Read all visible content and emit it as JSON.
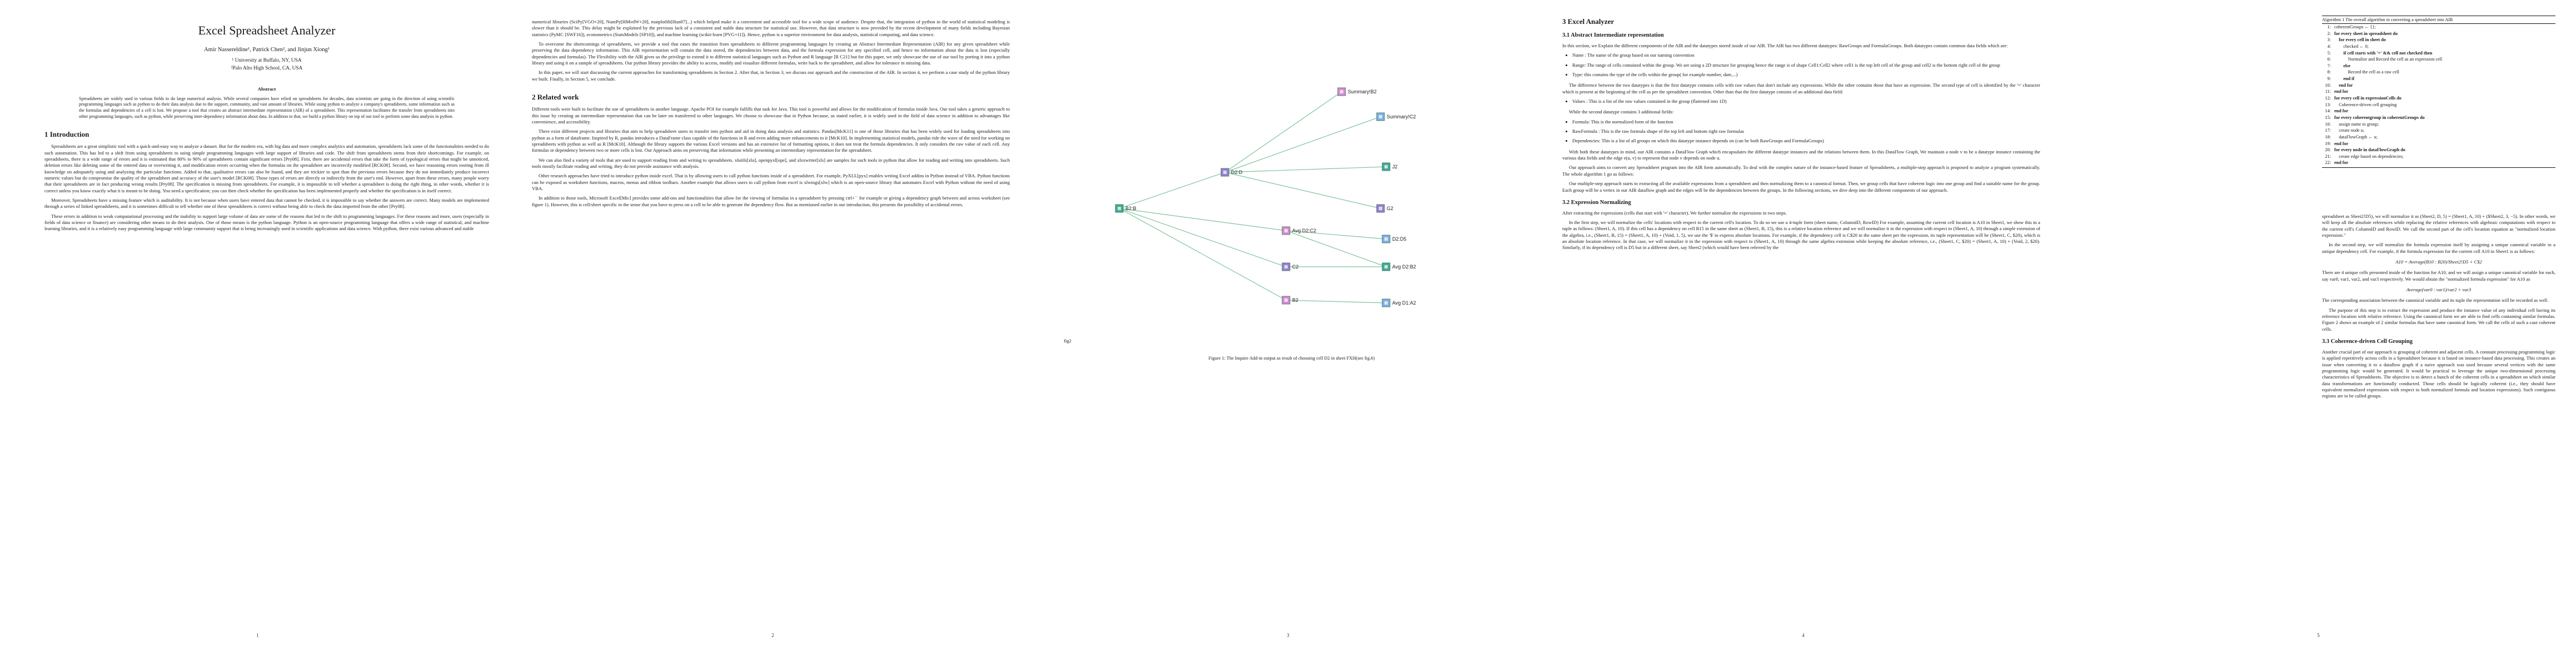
{
  "arxiv_id": "arXiv:2211.06333v1  [cs.SE]  1 Nov 2022",
  "page1": {
    "title": "Excel Spreadsheet Analyzer",
    "authors": "Amir Nassereldine¹, Patrick Chen², and Jinjun Xiong¹",
    "affil1": "¹ University at Buffalo, NY, USA",
    "affil2": "²Palo Alto High School, CA, USA",
    "abstract_title": "Abstract",
    "abstract": "Spreadsheets are widely used in various fields to do large numerical analysis. While several companies have relied on spreadsheets for decades, data scientists are going in the direction of using scientific programming languages such as python to do their data analysis due to the support, community, and vast amount of libraries. While using python to analyze a company's spreadsheets, some information such as the formulas and dependencies of a cell is lost. We propose a tool that creates an abstract intermediate representation (AIR) of a spreadsheet. This representation facilitates the transfer from spreadsheets into other programming languages, such as python, while preserving inter-dependency information about data. In addition to that, we build a python library on top of our tool to perform some data analysis in python.",
    "section": "1   Introduction",
    "para1": "Spreadsheets are a great simplistic tool with a quick-and-easy way to analyze a dataset. But for the modern era, with big data and more complex analytics and automation, spreadsheets lack some of the functionalities needed to do such automation. This has led to a shift from using spreadsheets to using simple programming languages with large support of libraries and code. The shift from spreadsheets stems from their shortcomings. For example, on spreadsheets, there is a wide range of errors and it is estimated that 80% to 90% of spreadsheets contain significant errors [Pry08]. First, there are accidental errors that take the form of typological errors that might be unnoticed, deletion errors like deleting some of the entered data or overwriting it, and modification errors occurring when the formulas on the spreadsheet are incorrectly modified [RCK08]. Second, we have reasoning errors rooting from ill knowledge on adequately using and analyzing the particular functions. Added to that, qualitative errors can also be found, and they are trickier to spot than the previous errors because they do not immediately produce incorrect numeric values but do compromise the quality of the spreadsheet and accuracy of the user's model [RCK08]. Those types of errors are directly or indirectly from the user's end. However, apart from these errors, many people worry that their spreadsheets are in fact producing wrong results [Pry08]. The specification is missing from spreadsheets. For example, it is impossible to tell whether a spreadsheet is doing the right thing, in other words, whether it is correct unless you know exactly what it is meant to be doing. You need a specification; you can then check whether the specification has been implemented properly and whether the specification is in itself correct.",
    "para2": "Moreover, Spreadsheets have a missing feature which is auditability. It is not because when users have entered data that cannot be checked, it is impossible to say whether the answers are correct. Many models are implemented through a series of linked spreadsheets, and it is sometimes difficult to tell whether one of these spreadsheets is correct without being able to check the data imported from the other [Pry08].",
    "para3": "These errors in addition to weak computational processing and the inability to support large volume of data are some of the reasons that led to the shift to programming languages. For these reasons and more, users (especially in fields of data science or finance) are considering other means to do their analysis. One of those means is the python language. Python is an open-source programming language that offers a wide range of statistical, and machine learning libraries, and it is a relatively easy programming language with large community support that is being increasingly used in scientific applications and data science. With python, there exist various advanced and stable",
    "page_number": "1"
  },
  "page2": {
    "para1": "numerical libraries (SciPy[VGO+20], NumPy[HMvdW+20], matplotlib[Hun07]...) which helped make it a convenient and accessible tool for a wide scope of audience. Despite that, the integration of python in the world of statistical modeling is slower than it should be. This delay might be explained by the previous lack of a consistent and stable data structure for statistical use. However, that data structure is now provided by the recent development of many fields including Bayesian statistics (PyMC [SWF16]), econometrics (StatsModels [SP10]), and machine learning (scikit-learn [PVG+11]). Hence, python is a superior environment for data analysis, statistical computing, and data science.",
    "para2": "To overcome the shortcomings of spreadsheets, we provide a tool that eases the transition from spreadsheets to different programming languages by creating an Abstract Intermediate Representation (AIR) for any given spreadsheet while preserving the data dependency information. This AIR representation will contain the data stored, the dependencies between data, and the formula expression for any specified cell, and hence no information about the data is lost (especially dependencies and formulas). The Flexibility with the AIR gives us the privilege to extend it to different statistical languages such as Python and R language [R C21] but for this paper, we only showcase the use of our tool by porting it into a python library and using it on a sample of spreadsheets. Our python library provides the ability to access, modify and visualize different formulas, write back to the spreadsheet, and allow for tolerance in missing data.",
    "para3": "In this paper, we will start discussing the current approaches for transforming spreadsheets in Section 2. After that, in Section 3, we discuss our approach and the construction of the AIR. In section 4, we perform a case study of the python library we built. Finally, in Section 5, we conclude.",
    "section": "2   Related work",
    "para4": "Different tools were built to facilitate the use of spreadsheets in another language. Apache POI for example fulfills that task for Java. This tool is powerful and allows for the modification of formulas inside Java. Our tool takes a generic approach to this issue by creating an intermediate representation that can be later on transferred to other languages. We choose to showcase that in Python because, as stated earlier, it is widely used in the field of data science in addition to advantages like convenience, and accessibility.",
    "para5": "There exist different projects and libraries that aim to help spreadsheet users to transfer into python and aid in doing data analysis and statistics. Pandas[McK11] is one of those libraries that has been widely used for loading spreadsheets into python as a form of dataframe. Inspired by R, pandas introduces a DataFrame class capable of the functions in R and even adding more enhancements to it [McK10]. In implementing statistical models, pandas ride the wave of the need for working on spreadsheets with python as well as R [McK10]. Although the library supports the various Excel versions and has an extensive list of formatting options, it does not treat the formula dependencies. It only considers the raw value of each cell. Any formulas or dependency between two or more cells is lost. Our Approach aims on preserving that information while presenting an intermediary representation for the spreadsheet.",
    "para6": "We can also find a variety of tools that are used to support reading from and writing to spreadsheets. xlutils[xlu], openpyxl[ope], and xlsxwriter[xls] are samples for such tools in python that allow for reading and writing into spreadsheets. Such tools mostly facilitate reading and writing, they do not provide assistance with analysis.",
    "para7": "Other research approaches have tried to introduce python inside excel. That is by allowing users to call python functions inside of a spreadsheet. For example, PyXLL[pyx] enables writing Excel addins in Python instead of VBA. Python functions can be exposed as worksheet functions, macros, menus and ribbon toolbars. Another example that allows users to call python from excel is xlwings[xlw] which is an open-source library that automates Excel with Python without the need of using VBA.",
    "para8": "In addition to those tools, Microsoft Excel[Mic] provides some add-ons and functionalities that allow for the viewing of formulas in a spreadsheet by pressing ctrl+`` for example or giving a dependency graph between and across worksheet (see figure 1). However, this is cell/sheet specific in the sense that you have to press on a cell to be able to generate the dependency flow. But as mentioned earlier in our introduction, this presents the possibility of accidental errors.",
    "page_number": "2"
  },
  "page3": {
    "graph_nodes": [
      {
        "id": "n0",
        "label": "B2:B"
      },
      {
        "id": "n1",
        "label": "D2:D"
      },
      {
        "id": "n2",
        "label": "Summary!B2"
      },
      {
        "id": "n3",
        "label": "Summary!C2"
      },
      {
        "id": "n4",
        "label": "J2"
      },
      {
        "id": "n5",
        "label": "G2"
      },
      {
        "id": "n6",
        "label": "Avg D2:C2"
      },
      {
        "id": "n7",
        "label": "D2:D5"
      },
      {
        "id": "n8",
        "label": "Avg D2:B2"
      },
      {
        "id": "n9",
        "label": "C2"
      },
      {
        "id": "n10",
        "label": "B2"
      },
      {
        "id": "n11",
        "label": "Avg D1:A2"
      }
    ],
    "fig_tag": "fig2",
    "caption": "Figure 1: The Inquire Add-in output as result of choosing cell D2 in sheet FXH(see fig.6)",
    "page_number": "3"
  },
  "page4": {
    "section": "3   Excel Analyzer",
    "sub1": "3.1   Abstract Intermediate representation",
    "para1": "In this section, we Explain the different components of the AIR and the datatypes stored inside of our AIR. The AIR has two different datatypes: RawGroups and FormulaGroups. Both datatypes contain common data fields which are:",
    "bullets1": [
      "Name : The name of the group based on our naming convention",
      "Range: The range of cells contained within the group. We are using a 2D structure for grouping hence the range is of shape Cell1:Cell2 where cell1 is the top left cell of the group and cell2 is the bottom right cell of the group",
      "Type: this contains the type of the cells within the group( for example number, date,...)"
    ],
    "para2": "The difference between the two datatypes is that the first datatype contains cells with raw values that don't include any expressions. While the other contains those that have an expression. The second type of cell is identified by the '=' character which is present at the beginning of the cell as per the spreadsheet convention. Other than that the first datatype consists of an additional data field:",
    "bullets2": [
      "Values : This is a list of the raw values contained in the group (flattened into 1D)"
    ],
    "para3": "While the second datatype contains 3 additional fields:",
    "bullets3": [
      "Formula: This is the normalized form of the function",
      "RawFormula : This is the raw formula shape of the top left and bottom right raw formulas",
      "Dependencies: This is a list of all groups on which this datatype instance depends on (can be both RawGroups and FormulaGroups)"
    ],
    "para4": "With both these datatypes in mind, our AIR contains a DataFlow Graph which encapsulates the different datatype instances and the relations between them. In this DataFlow Graph, We maintain a node v to be a datatype instance containing the various data fields and the edge e(u, v) to represent that node v depends on node u.",
    "para5": "Our approach aims to convert any Spreadsheet program into the AIR form automatically. To deal with the complex nature of the instance-based feature of Spreadsheets, a multiple-step approach is proposed to analyze a program systematically. The whole algorithm 1 go as follows:",
    "para6": "Our multiple-step approach starts to extracting all the available expressions from a spreadsheet and then normalizing them to a canonical format. Then, we group cells that have coherent logic into one group and find a suitable name for the group. Each group will be a vertex in our AIR dataflow graph and the edges will be the dependencies between the groups. In the following sections, we dive deep into the different components of our approach.",
    "sub2": "3.2   Expression Normalizing",
    "para7": "After extracting the expressions (cells that start with '=' character). We further normalize the expressions in two steps.",
    "para8": "In the first step, we will normalize the cells' locations with respect to the current cell's location. To do so we use a 4-tuple form (sheet name, ColumnID, RowID) For example, assuming the current cell location is A10 in Sheet1, we show this in a tuple as follows: (Sheet1, A, 10). If this cell has a dependency on cell B15 in the same sheet as (Sheet1, B, 15), this is a relative location reference and we will normalize it in the expression with respect to (Sheet1, A, 10) through a simple extension of the algebra, i.e., (Sheet1, B, 15) = (Sheet1, A, 10) + (Void, 1, 5), we use the '$' to express absolute locations. For example, if the dependency cell is C$20 in the same sheet per the expression, its tuple representation will be (Sheet1, C, $20), which is an absolute location reference. In that case, we will normalize it in the expression with respect to (Sheet1, A, 10) through the same algebra extension while keeping the absolute reference, i.e., (Sheet1, C, $20) = (Sheet1, A, 10) + (Void, 2, $20). Similarly, if its dependency cell is D5 but in a different sheet, say Sheet2 (which would have been referred by the",
    "page_number": "4"
  },
  "page5": {
    "algo_title": "Algorithm 1 The overall algorithm in converting a spreadsheet into AIR",
    "algo_lines": [
      "coherentGroups ← {};",
      "for every sheet in spreadsheet do",
      "    for every cell in sheet do",
      "        checked ← 0;",
      "        if cell starts with '=' && cell not checked then",
      "            Normalize and Record the cell as an expression cell",
      "        else",
      "            Record the cell as a raw cell",
      "        end if",
      "    end for",
      "end for",
      "for every cell in expressionCells do",
      "    Coherence-driven cell grouping",
      "end for",
      "for every coherentgroup in coherentGroups do",
      "    assign name to group;",
      "    create node u;",
      "    dataFlowGraph ← u;",
      "end for",
      "for every node in dataFlowGraph do",
      "    create edge based on dependencies;",
      "end for"
    ],
    "para1": "spreadsheet as Sheet2!D5), we will normalize it as (Sheet2, D, 5) = (Sheet1, A, 10) + ($Sheet2, 3, −5). In other words, we will keep all the absolute references while replacing the relative references with algebraic computations with respect to the current cell's ColumnID and RowID. We call the second part of the cell's location equation as \"normalized location expression.\"",
    "para2": "In the second step, we will normalize the formula expression itself by assigning a unique canonical variable to a unique dependency cell. For example, if the formula expression for the current cell A10 in Sheet1 is as follows:",
    "eq1": "A10 = Average(B10 : B20)/Sheet2!D5 + C$2",
    "para3": "There are 4 unique cells presented inside of the function for A10, and we will assign a unique canonical variable for each, say var0, var1, var2, and var3 respectively. We would obtain the \"normalized formula expression\" for A10 as",
    "eq2": "Average(var0 : var1)/var2 + var3",
    "para4": "The corresponding association between the canonical variable and its tuple the representation will be recorded as well.",
    "para5": "The purpose of this step is to extract the expression and produce the instance value of any individual cell having its reference location with relative reference. Using the canonical form we are able to find cells containing similar formulas. Figure 2 shows an example of 2 similar formulas that have same canonical form. We call the cells of such a case coherent cells.",
    "sub": "3.3   Coherence-driven Cell Grouping",
    "para6": "Another crucial part of our approach is grouping of coherent and adjacent cells. A constant processing programming logic is applied repetitively across cells in a Spreadsheet because it is based on instance-based data processing. This creates an issue when converting it to a dataflow graph if a naive approach was used because several vertices with the same programming logic would be generated. It would be practical to leverage the unique two-dimensional processing characteristics of Spreadsheets. The objective is to detect a bunch of the coherent cells in a spreadsheet on which similar data transformations are functionally conducted. Those cells should be logically coherent (i.e., they should have equivalent normalized expressions with respect to both normalized formula and location expressions). Such contiguous regions are to be called groups.",
    "page_number": "5"
  }
}
